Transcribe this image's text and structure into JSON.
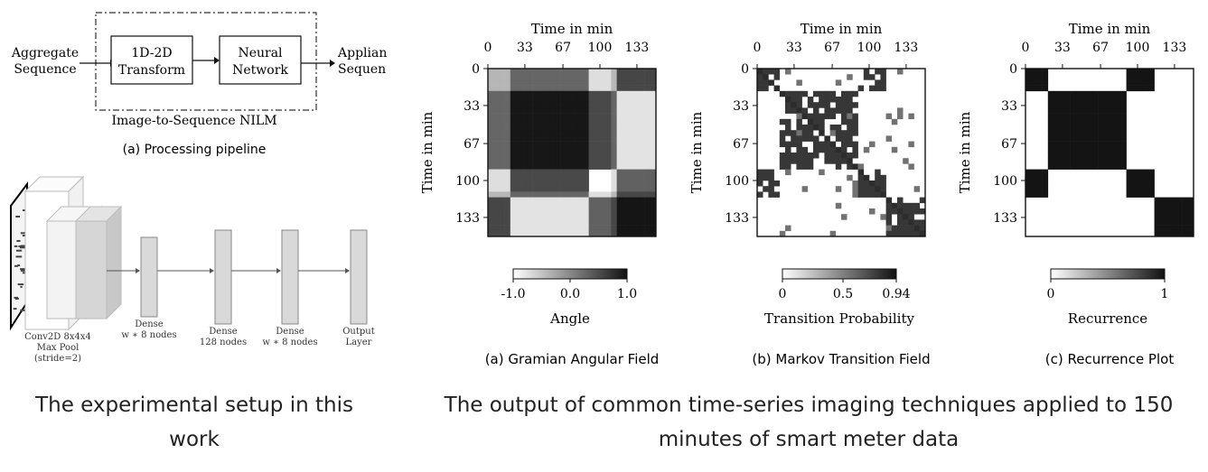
{
  "pipeline": {
    "input_label": [
      "Aggregate",
      "Sequence"
    ],
    "box1": [
      "1D-2D",
      "Transform"
    ],
    "box2": [
      "Neural",
      "Network"
    ],
    "output_label": [
      "Applian",
      "Sequen"
    ],
    "frame_label": "Image-to-Sequence NILM",
    "caption": "(a) Processing pipeline"
  },
  "network": {
    "layers": [
      {
        "lines": [
          "Conv2D 8x4x4",
          "Max Pool",
          "(stride=2)"
        ]
      },
      {
        "lines": [
          "Dense",
          "w ∗ 8 nodes"
        ]
      },
      {
        "lines": [
          "Dense",
          "128 nodes"
        ]
      },
      {
        "lines": [
          "Dense",
          "w ∗ 8 nodes"
        ]
      },
      {
        "lines": [
          "Output",
          "Layer"
        ]
      }
    ]
  },
  "left_caption": "The experimental setup in this work",
  "right_caption": "The output of common time-series imaging techniques applied to 150 minutes of smart meter data",
  "axis": {
    "top_label": "Time in min",
    "side_label": "Time in min",
    "ticks": [
      0,
      33,
      67,
      100,
      133
    ],
    "range": [
      0,
      150
    ]
  },
  "chart_data": [
    {
      "type": "heatmap",
      "title": "(a) Gramian Angular Field",
      "xlabel": "Time in min",
      "ylabel": "Time in min",
      "xticks": [
        0,
        33,
        67,
        100,
        133
      ],
      "yticks": [
        0,
        33,
        67,
        100,
        133
      ],
      "xlim": [
        0,
        150
      ],
      "ylim": [
        0,
        150
      ],
      "colorbar": {
        "label": "Angle",
        "ticks": [
          "-1.0",
          "0.0",
          "1.0"
        ],
        "range": [
          -1.0,
          1.0
        ]
      }
    },
    {
      "type": "heatmap",
      "title": "(b) Markov Transition Field",
      "xlabel": "Time in min",
      "ylabel": "Time in min",
      "xticks": [
        0,
        33,
        67,
        100,
        133
      ],
      "yticks": [
        0,
        33,
        67,
        100,
        133
      ],
      "xlim": [
        0,
        150
      ],
      "ylim": [
        0,
        150
      ],
      "colorbar": {
        "label": "Transition Probability",
        "ticks": [
          "0",
          "0.5",
          "0.94"
        ],
        "range": [
          0,
          0.94
        ]
      }
    },
    {
      "type": "heatmap",
      "title": "(c) Recurrence Plot",
      "xlabel": "Time in min",
      "ylabel": "Time in min",
      "xticks": [
        0,
        33,
        67,
        100,
        133
      ],
      "yticks": [
        0,
        33,
        67,
        100,
        133
      ],
      "xlim": [
        0,
        150
      ],
      "ylim": [
        0,
        150
      ],
      "colorbar": {
        "label": "Recurrence",
        "ticks": [
          "0",
          "1"
        ],
        "range": [
          0,
          1
        ]
      }
    }
  ],
  "colors": {
    "ink": "#111111",
    "box_fill": "#e6e6e6",
    "layer_fill": "#d9d9d9"
  }
}
